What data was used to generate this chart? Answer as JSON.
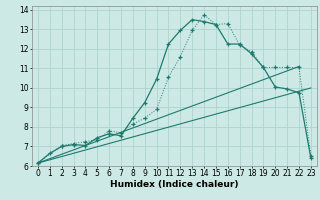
{
  "xlabel": "Humidex (Indice chaleur)",
  "xlim": [
    -0.5,
    23.5
  ],
  "ylim": [
    6,
    14.2
  ],
  "xticks": [
    0,
    1,
    2,
    3,
    4,
    5,
    6,
    7,
    8,
    9,
    10,
    11,
    12,
    13,
    14,
    15,
    16,
    17,
    18,
    19,
    20,
    21,
    22,
    23
  ],
  "yticks": [
    6,
    7,
    8,
    9,
    10,
    11,
    12,
    13,
    14
  ],
  "bg_color": "#cce9e5",
  "grid_color": "#aed4cf",
  "line_color": "#1e7a6e",
  "line1_x": [
    0,
    1,
    2,
    3,
    4,
    5,
    6,
    7,
    8,
    9,
    10,
    11,
    12,
    13,
    14,
    15,
    16,
    17,
    18,
    19,
    20,
    21,
    22,
    23
  ],
  "line1_y": [
    6.15,
    6.65,
    7.0,
    7.1,
    7.05,
    7.45,
    7.65,
    7.55,
    8.45,
    9.25,
    10.45,
    12.25,
    12.95,
    13.5,
    13.4,
    13.25,
    12.25,
    12.25,
    11.75,
    11.05,
    10.05,
    9.95,
    9.75,
    6.4
  ],
  "line2_x": [
    0,
    2,
    3,
    4,
    5,
    6,
    7,
    8,
    9,
    10,
    11,
    12,
    13,
    14,
    15,
    16,
    17,
    18,
    19,
    20,
    21,
    22,
    23
  ],
  "line2_y": [
    6.15,
    7.05,
    7.15,
    7.25,
    7.35,
    7.8,
    7.7,
    8.15,
    8.45,
    8.9,
    10.55,
    11.6,
    12.95,
    13.75,
    13.25,
    13.3,
    12.2,
    11.85,
    11.05,
    11.05,
    11.05,
    11.05,
    6.5
  ],
  "line3_x": [
    0,
    22
  ],
  "line3_y": [
    6.15,
    11.1
  ],
  "line4_x": [
    0,
    23
  ],
  "line4_y": [
    6.15,
    10.0
  ]
}
